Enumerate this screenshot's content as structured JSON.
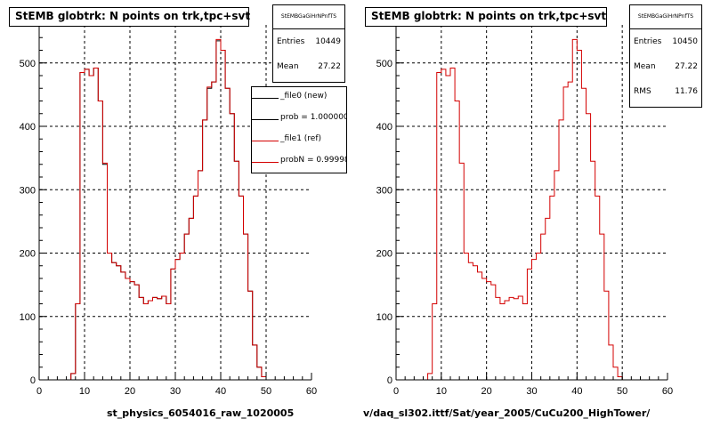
{
  "colors": {
    "new": "#000000",
    "ref": "#d40000",
    "grid": "#000000",
    "background": "#ffffff"
  },
  "chart_data": [
    {
      "type": "histogram",
      "title": "StEMB globtrk: N points on trk,tpc+svt",
      "xlabel": "st_physics_6054016_raw_1020005",
      "xlim": [
        0,
        60
      ],
      "ylim": [
        0,
        560
      ],
      "x_ticks": [
        0,
        10,
        20,
        30,
        40,
        50,
        60
      ],
      "y_ticks": [
        0,
        100,
        200,
        300,
        400,
        500
      ],
      "grid": true,
      "stats": {
        "header": "StEMBGaGiHrNPnfTS",
        "entries_label": "Entries",
        "entries": "10449",
        "mean_label": "Mean",
        "mean": "27.22"
      },
      "legend": {
        "placement": "top-right",
        "entries": [
          {
            "label": "_file0 (new)",
            "color": "#000000"
          },
          {
            "label": "prob = 1.000000",
            "color": "#000000"
          },
          {
            "label": "_file1 (ref)",
            "color": "#d40000"
          },
          {
            "label": "probN = 0.99998",
            "color": "#d40000"
          }
        ]
      },
      "series": [
        {
          "name": "_file0 (new)",
          "color": "#000000",
          "x_edges_start": 0,
          "bin_width": 1,
          "values": [
            0,
            0,
            0,
            0,
            0,
            0,
            0,
            10,
            120,
            485,
            490,
            480,
            492,
            440,
            340,
            200,
            185,
            180,
            170,
            160,
            155,
            150,
            130,
            120,
            125,
            130,
            128,
            132,
            120,
            175,
            190,
            200,
            230,
            255,
            290,
            330,
            410,
            460,
            470,
            535,
            520,
            460,
            420,
            345,
            290,
            230,
            140,
            55,
            20,
            5,
            0,
            0,
            0,
            0,
            0,
            0,
            0,
            0,
            0,
            0
          ]
        },
        {
          "name": "_file1 (ref)",
          "color": "#d40000",
          "x_edges_start": 0,
          "bin_width": 1,
          "values": [
            0,
            0,
            0,
            0,
            0,
            0,
            0,
            10,
            120,
            485,
            490,
            480,
            492,
            440,
            342,
            200,
            185,
            180,
            170,
            160,
            155,
            150,
            130,
            120,
            125,
            130,
            128,
            132,
            120,
            175,
            190,
            200,
            230,
            255,
            290,
            330,
            410,
            462,
            470,
            537,
            520,
            460,
            420,
            345,
            290,
            230,
            140,
            55,
            20,
            5,
            0,
            0,
            0,
            0,
            0,
            0,
            0,
            0,
            0,
            0
          ]
        }
      ]
    },
    {
      "type": "histogram",
      "title": "StEMB globtrk: N points on trk,tpc+svt",
      "xlabel": "v/daq_sl302.ittf/Sat/year_2005/CuCu200_HighTower/",
      "xlim": [
        0,
        60
      ],
      "ylim": [
        0,
        560
      ],
      "x_ticks": [
        0,
        10,
        20,
        30,
        40,
        50,
        60
      ],
      "y_ticks": [
        0,
        100,
        200,
        300,
        400,
        500
      ],
      "grid": true,
      "stats": {
        "header": "StEMBGaGiHrNPnfTS",
        "entries_label": "Entries",
        "entries": "10450",
        "mean_label": "Mean",
        "mean": "27.22",
        "rms_label": "RMS",
        "rms": "11.76"
      },
      "series": [
        {
          "name": "",
          "color": "#d40000",
          "x_edges_start": 0,
          "bin_width": 1,
          "values": [
            0,
            0,
            0,
            0,
            0,
            0,
            0,
            10,
            120,
            485,
            490,
            480,
            492,
            440,
            342,
            200,
            185,
            180,
            170,
            160,
            155,
            150,
            130,
            120,
            125,
            130,
            128,
            132,
            120,
            175,
            190,
            200,
            230,
            255,
            290,
            330,
            410,
            462,
            470,
            537,
            520,
            460,
            420,
            345,
            290,
            230,
            140,
            55,
            20,
            5,
            0,
            0,
            0,
            0,
            0,
            0,
            0,
            0,
            0,
            0
          ]
        }
      ]
    }
  ]
}
